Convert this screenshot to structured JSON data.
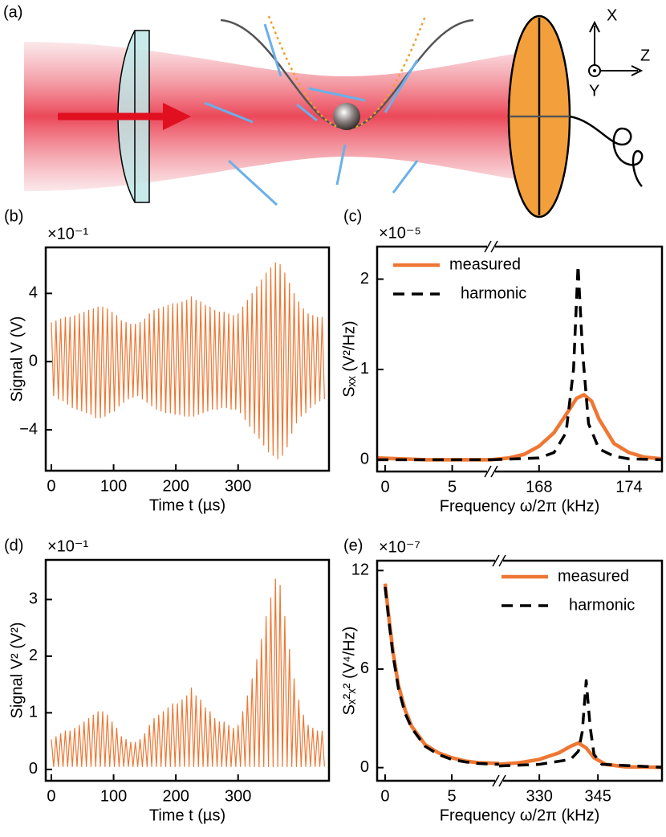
{
  "diagram": {
    "panel": "(a)",
    "axis_x": "X",
    "axis_z": "Z",
    "axis_y": "Y"
  },
  "chart_data": [
    {
      "type": "line",
      "panel": "(b)",
      "y_multiplier": "×10⁻¹",
      "xlabel": "Time t (µs)",
      "ylabel": "Signal V (V)",
      "color": "#ee7733",
      "xlim": [
        -9,
        446
      ],
      "xticks": [
        0,
        100,
        200,
        300
      ],
      "ylim": [
        -6.4,
        6.7
      ],
      "yticks": [
        4,
        0,
        {
          "value": -4,
          "label": "−4"
        }
      ],
      "x": [
        0,
        3.75,
        7.5,
        11.25,
        15,
        18.75,
        22.5,
        26.25,
        30,
        33.75,
        37.5,
        41.25,
        45,
        48.75,
        52.5,
        56.25,
        60,
        63.75,
        67.5,
        71.25,
        75,
        78.75,
        82.5,
        86.25,
        90,
        93.75,
        97.5,
        101.25,
        105,
        108.75,
        112.5,
        116.25,
        120,
        123.75,
        127.5,
        131.25,
        135,
        138.75,
        142.5,
        146.25,
        150,
        153.75,
        157.5,
        161.25,
        165,
        168.75,
        172.5,
        176.25,
        180,
        183.75,
        187.5,
        191.25,
        195,
        198.75,
        202.5,
        206.25,
        210,
        213.75,
        217.5,
        221.25,
        225,
        228.75,
        232.5,
        236.25,
        240,
        243.75,
        247.5,
        251.25,
        255,
        258.75,
        262.5,
        266.25,
        270,
        273.75,
        277.5,
        281.25,
        285,
        288.75,
        292.5,
        296.25,
        300,
        303.75,
        307.5,
        311.25,
        315,
        318.75,
        322.5,
        326.25,
        330,
        333.75,
        337.5,
        341.25,
        345,
        348.75,
        352.5,
        356.25,
        360,
        363.75,
        367.5,
        371.25,
        375,
        378.75,
        382.5,
        386.25,
        390,
        393.75,
        397.5,
        401.25,
        405,
        408.75,
        412.5,
        416.25,
        420,
        423.75,
        427.5,
        431.25,
        435,
        438.75
      ],
      "values": [
        2.3,
        -2.0,
        2.4,
        -2.2,
        2.5,
        -2.3,
        2.6,
        -2.5,
        2.6,
        -2.7,
        2.7,
        -2.8,
        2.8,
        -2.9,
        2.9,
        -3.0,
        3.0,
        -3.1,
        3.1,
        -3.3,
        3.2,
        -3.3,
        3.2,
        -3.2,
        3.1,
        -3.0,
        2.9,
        -2.9,
        2.7,
        -2.6,
        2.4,
        -2.4,
        2.3,
        -2.2,
        2.2,
        -2.1,
        2.2,
        -2.0,
        2.3,
        -2.2,
        2.5,
        -2.4,
        2.8,
        -2.6,
        3.0,
        -2.8,
        3.1,
        -2.9,
        3.2,
        -3.0,
        3.3,
        -3.0,
        3.4,
        -3.1,
        3.4,
        -3.1,
        3.5,
        -3.2,
        3.6,
        -3.2,
        3.8,
        -3.2,
        3.6,
        -3.1,
        3.5,
        -3.0,
        3.3,
        -2.9,
        3.2,
        -2.8,
        3.0,
        -2.8,
        2.9,
        -2.7,
        2.9,
        -2.7,
        2.8,
        -2.8,
        2.7,
        -2.8,
        2.8,
        -3.0,
        3.2,
        -3.4,
        3.6,
        -3.8,
        4.0,
        -4.2,
        4.4,
        -4.5,
        4.8,
        -4.9,
        5.2,
        -5.3,
        5.5,
        -5.5,
        5.8,
        -5.7,
        5.7,
        -5.5,
        5.2,
        -5.0,
        4.6,
        -4.2,
        4.0,
        -3.6,
        3.5,
        -3.2,
        3.1,
        -3.0,
        2.8,
        -2.7,
        2.7,
        -2.5,
        2.6,
        -2.3,
        2.6,
        -2.2
      ]
    },
    {
      "type": "line",
      "panel": "(c)",
      "y_multiplier": "×10⁻⁵",
      "xlabel": "Frequency ω/2π (kHz)",
      "ylabel": "Sₓₓ (V²/Hz)",
      "xlim": [
        [
          -0.6,
          7.9
        ],
        [
          164.8,
          176.2
        ]
      ],
      "xticks": [
        0,
        5,
        168,
        174
      ],
      "ylim": [
        -0.13,
        2.36
      ],
      "yticks": [
        0,
        1,
        2
      ],
      "series": [
        {
          "name": "measured",
          "color": "#ee7733",
          "dash": false,
          "x": [
            -0.6,
            3,
            7.9,
            null,
            164.8,
            166,
            167,
            168,
            169,
            170,
            170.5,
            171,
            171.5,
            172,
            173,
            174,
            175,
            176.2
          ],
          "values": [
            0.02,
            0,
            0,
            null,
            0,
            0.02,
            0.06,
            0.15,
            0.3,
            0.55,
            0.68,
            0.72,
            0.65,
            0.45,
            0.18,
            0.08,
            0.03,
            0.01
          ]
        },
        {
          "name": "harmonic",
          "color": "#000000",
          "dash": true,
          "x": [
            -0.6,
            3,
            7.9,
            null,
            164.8,
            168,
            169,
            169.8,
            170.3,
            170.6,
            170.9,
            171.3,
            172,
            173,
            174,
            176.2
          ],
          "values": [
            0,
            0,
            0,
            null,
            0,
            0.02,
            0.08,
            0.3,
            1.0,
            2.15,
            1.2,
            0.4,
            0.12,
            0.04,
            0.01,
            0
          ]
        }
      ]
    },
    {
      "type": "line",
      "panel": "(d)",
      "y_multiplier": "×10⁻¹",
      "xlabel": "Time t (µs)",
      "ylabel": "Signal V² (V²)",
      "color": "#ee7733",
      "xlim": [
        -9,
        446
      ],
      "xticks": [
        0,
        100,
        200,
        300
      ],
      "ylim": [
        -0.2,
        3.7
      ],
      "yticks": [
        0,
        1,
        2,
        3
      ],
      "x": [
        0,
        3.75,
        7.5,
        11.25,
        15,
        18.75,
        22.5,
        26.25,
        30,
        33.75,
        37.5,
        41.25,
        45,
        48.75,
        52.5,
        56.25,
        60,
        63.75,
        67.5,
        71.25,
        75,
        78.75,
        82.5,
        86.25,
        90,
        93.75,
        97.5,
        101.25,
        105,
        108.75,
        112.5,
        116.25,
        120,
        123.75,
        127.5,
        131.25,
        135,
        138.75,
        142.5,
        146.25,
        150,
        153.75,
        157.5,
        161.25,
        165,
        168.75,
        172.5,
        176.25,
        180,
        183.75,
        187.5,
        191.25,
        195,
        198.75,
        202.5,
        206.25,
        210,
        213.75,
        217.5,
        221.25,
        225,
        228.75,
        232.5,
        236.25,
        240,
        243.75,
        247.5,
        251.25,
        255,
        258.75,
        262.5,
        266.25,
        270,
        273.75,
        277.5,
        281.25,
        285,
        288.75,
        292.5,
        296.25,
        300,
        303.75,
        307.5,
        311.25,
        315,
        318.75,
        322.5,
        326.25,
        330,
        333.75,
        337.5,
        341.25,
        345,
        348.75,
        352.5,
        356.25,
        360,
        363.75,
        367.5,
        371.25,
        375,
        378.75,
        382.5,
        386.25,
        390,
        393.75,
        397.5,
        401.25,
        405,
        408.75,
        412.5,
        416.25,
        420,
        423.75,
        427.5,
        431.25,
        435,
        438.75
      ],
      "values": [
        0.53,
        0.05,
        0.58,
        0.05,
        0.63,
        0.05,
        0.68,
        0.05,
        0.68,
        0.05,
        0.73,
        0.05,
        0.78,
        0.05,
        0.84,
        0.05,
        0.9,
        0.05,
        0.96,
        0.05,
        1.02,
        0.05,
        1.02,
        0.05,
        0.96,
        0.05,
        0.84,
        0.05,
        0.73,
        0.05,
        0.58,
        0.05,
        0.53,
        0.05,
        0.48,
        0.05,
        0.48,
        0.05,
        0.53,
        0.05,
        0.63,
        0.05,
        0.78,
        0.05,
        0.9,
        0.05,
        0.96,
        0.05,
        1.02,
        0.05,
        1.09,
        0.05,
        1.16,
        0.05,
        1.16,
        0.05,
        1.23,
        0.05,
        1.3,
        0.05,
        1.44,
        0.05,
        1.3,
        0.05,
        1.23,
        0.05,
        1.09,
        0.05,
        1.02,
        0.05,
        0.9,
        0.05,
        0.84,
        0.05,
        0.84,
        0.05,
        0.78,
        0.05,
        0.73,
        0.05,
        0.78,
        0.05,
        1.02,
        0.05,
        1.3,
        0.05,
        1.6,
        0.05,
        1.94,
        0.05,
        2.3,
        0.05,
        2.7,
        0.05,
        3.03,
        0.05,
        3.36,
        0.05,
        3.25,
        0.05,
        2.7,
        0.05,
        2.12,
        0.05,
        1.6,
        0.05,
        1.23,
        0.05,
        0.96,
        0.05,
        0.78,
        0.05,
        0.73,
        0.05,
        0.68,
        0.05,
        0.68,
        0.05
      ]
    },
    {
      "type": "line",
      "panel": "(e)",
      "y_multiplier": "×10⁻⁷",
      "xlabel": "Frequency ω/2π (kHz)",
      "ylabel": "Sₓ²ₓ² (V⁴/Hz)",
      "xlim": [
        [
          -0.6,
          8.55
        ],
        [
          319.7,
          361.4
        ]
      ],
      "xticks": [
        0,
        5,
        330,
        345
      ],
      "ylim": [
        -0.8,
        12.6
      ],
      "yticks": [
        0,
        6,
        12
      ],
      "series": [
        {
          "name": "measured",
          "color": "#ee7733",
          "dash": false,
          "x": [
            0,
            0.3,
            0.6,
            1,
            1.5,
            2,
            3,
            4,
            5,
            6,
            7,
            8.55,
            null,
            319.7,
            325,
            330,
            335,
            338,
            340,
            342,
            344,
            347,
            352,
            361.4
          ],
          "values": [
            11.2,
            9,
            7,
            5,
            3.5,
            2.5,
            1.4,
            0.9,
            0.6,
            0.4,
            0.3,
            0.25,
            null,
            0.2,
            0.3,
            0.5,
            0.9,
            1.3,
            1.5,
            1.2,
            0.6,
            0.2,
            0.05,
            0.02
          ]
        },
        {
          "name": "harmonic",
          "color": "#000000",
          "dash": true,
          "x": [
            0,
            0.3,
            0.6,
            1,
            1.5,
            2,
            3,
            4,
            5,
            6,
            7,
            8.55,
            null,
            319.7,
            330,
            338,
            340,
            341,
            342,
            343,
            344,
            346,
            361.4
          ],
          "values": [
            11.0,
            8.8,
            6.8,
            4.8,
            3.3,
            2.4,
            1.3,
            0.8,
            0.5,
            0.35,
            0.25,
            0.2,
            null,
            0.1,
            0.2,
            0.5,
            1.0,
            2.2,
            5.3,
            2.5,
            0.8,
            0.2,
            0.02
          ]
        }
      ]
    }
  ]
}
